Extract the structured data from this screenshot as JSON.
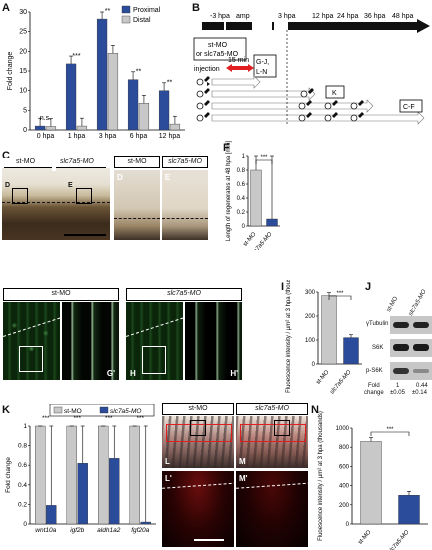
{
  "panels": {
    "A": "A",
    "B": "B",
    "C": "C",
    "D": "D",
    "E": "E",
    "F": "F",
    "G": "G",
    "Gp": "G'",
    "H": "H",
    "Hp": "H'",
    "I": "I",
    "J": "J",
    "K": "K",
    "L": "L",
    "Lp": "L'",
    "M": "M",
    "Mp": "M'",
    "N": "N"
  },
  "chart_data": [
    {
      "id": "A",
      "type": "bar",
      "ylabel": "Fold change",
      "ylim": [
        0,
        30
      ],
      "yticks": [
        0,
        5,
        10,
        15,
        20,
        25,
        30
      ],
      "categories": [
        "0 hpa",
        "1 hpa",
        "3 hpa",
        "6 hpa",
        "12 hpa"
      ],
      "series": [
        {
          "name": "Proximal",
          "color": "#2b4c9b",
          "values": [
            1,
            16.8,
            28.2,
            12.8,
            10.0
          ]
        },
        {
          "name": "Distal",
          "color": "#c8c8c8",
          "values": [
            0.9,
            1.0,
            19.5,
            6.8,
            1.5
          ]
        }
      ],
      "sig": [
        "n.s.",
        "***",
        "**",
        "**",
        "**"
      ]
    },
    {
      "id": "F",
      "type": "bar",
      "ylabel": "Length of regenerates at 48 hpa [mm]",
      "ylim": [
        0,
        1
      ],
      "yticks": [
        0,
        0.2,
        0.4,
        0.6,
        0.8,
        1
      ],
      "categories": [
        "st-MO",
        "slc7a5-MO"
      ],
      "values": [
        0.8,
        0.1
      ],
      "colors": [
        "#c8c8c8",
        "#2b4c9b"
      ],
      "sig": "***"
    },
    {
      "id": "I",
      "type": "bar",
      "ylabel": "Fluoescence intensity / µm² at 3 hpa (thousands)",
      "ylim": [
        0,
        300
      ],
      "yticks": [
        0,
        100,
        200,
        300
      ],
      "categories": [
        "st-MO",
        "slc7a5-MO"
      ],
      "values": [
        285,
        110
      ],
      "colors": [
        "#c8c8c8",
        "#2b4c9b"
      ],
      "sig": "***"
    },
    {
      "id": "K",
      "type": "bar",
      "ylabel": "Fold change",
      "ylim": [
        0,
        1
      ],
      "yticks": [
        0,
        0.2,
        0.4,
        0.6,
        0.8,
        1
      ],
      "categories": [
        "wnt10a",
        "igf2b",
        "aldh1a2",
        "fgf20a"
      ],
      "series": [
        {
          "name": "st-MO",
          "color": "#c8c8c8",
          "values": [
            1,
            1,
            1,
            1
          ]
        },
        {
          "name": "slc7a5-MO",
          "color": "#2b4c9b",
          "values": [
            0.19,
            0.62,
            0.67,
            0.02
          ]
        }
      ],
      "sig": [
        "***",
        "***",
        "***",
        "***"
      ]
    },
    {
      "id": "N",
      "type": "bar",
      "ylabel": "Fluoescence intensity / µm² at 3 hpa (thousands)",
      "ylim": [
        0,
        1000
      ],
      "yticks": [
        0,
        200,
        400,
        600,
        800,
        1000
      ],
      "categories": [
        "st-MO",
        "slc7a5-MO"
      ],
      "values": [
        860,
        300
      ],
      "colors": [
        "#c8c8c8",
        "#2b4c9b"
      ],
      "sig": "***"
    }
  ],
  "timeline": {
    "labels": [
      "-3 hpa",
      "amp",
      "3 hpa",
      "12 hpa",
      "24 hpa",
      "36 hpa",
      "48 hpa"
    ],
    "mo_box": [
      "st-MO",
      "or slc7a5-MO"
    ],
    "interval": "15 min",
    "injection": "injection",
    "boxes": [
      "G-J,",
      "L-N",
      "K",
      "C-F"
    ]
  },
  "photos": {
    "C_labels": [
      "st-MO",
      "slc7a5-MO"
    ],
    "C_sub": [
      "D",
      "E"
    ],
    "DE_labels": [
      "st-MO",
      "slc7a5-MO"
    ],
    "GH_labels": [
      "st-MO",
      "slc7a5-MO"
    ],
    "LM_labels": [
      "st-MO",
      "slc7a5-MO"
    ]
  },
  "western": {
    "columns": [
      "st-MO",
      "slc7a5-MO"
    ],
    "rows": [
      "γTubulin",
      "S6K",
      "p-S6K"
    ],
    "fold_label": [
      "Fold",
      "change"
    ],
    "fold_values": [
      "1",
      "0.44"
    ],
    "fold_err": [
      "±0.05",
      "±0.14"
    ]
  }
}
